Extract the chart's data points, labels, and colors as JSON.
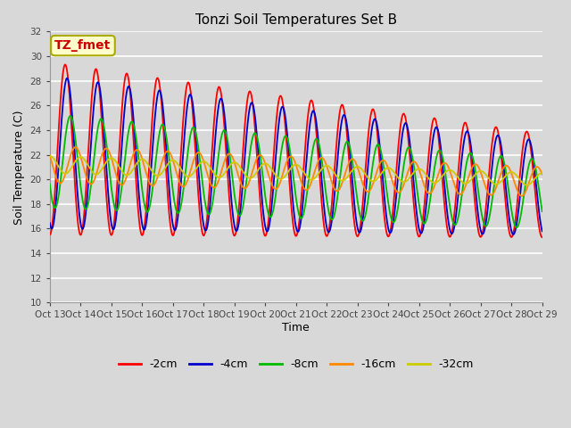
{
  "title": "Tonzi Soil Temperatures Set B",
  "xlabel": "Time",
  "ylabel": "Soil Temperature (C)",
  "ylim": [
    10,
    32
  ],
  "yticks": [
    10,
    12,
    14,
    16,
    18,
    20,
    22,
    24,
    26,
    28,
    30,
    32
  ],
  "fig_bg": "#d8d8d8",
  "plot_bg": "#d8d8d8",
  "grid_color": "#ffffff",
  "annotation_text": "TZ_fmet",
  "annotation_bg": "#ffffcc",
  "annotation_border": "#aaaa00",
  "annotation_text_color": "#cc0000",
  "legend_entries": [
    "-2cm",
    "-4cm",
    "-8cm",
    "-16cm",
    "-32cm"
  ],
  "legend_colors": [
    "#ff0000",
    "#0000cc",
    "#00bb00",
    "#ff8800",
    "#cccc00"
  ],
  "line_width": 1.3,
  "start_day": 13,
  "end_day": 29,
  "num_days": 16,
  "series_params": {
    "d2": {
      "mean_s": 22.5,
      "mean_e": 19.5,
      "amp_s": 7.0,
      "amp_e": 4.2,
      "phase": 6.0,
      "lag": 0.0
    },
    "d4": {
      "mean_s": 22.2,
      "mean_e": 19.3,
      "amp_s": 6.2,
      "amp_e": 3.8,
      "phase": 7.5,
      "lag": 0.0
    },
    "d8": {
      "mean_s": 21.5,
      "mean_e": 18.8,
      "amp_s": 3.8,
      "amp_e": 2.8,
      "phase": 10.0,
      "lag": 0.0
    },
    "d16": {
      "mean_s": 21.2,
      "mean_e": 19.8,
      "amp_s": 1.5,
      "amp_e": 1.2,
      "phase": 14.0,
      "lag": 0.0
    },
    "d32": {
      "mean_s": 21.2,
      "mean_e": 20.0,
      "amp_s": 0.7,
      "amp_e": 0.5,
      "phase": 18.0,
      "lag": 0.0
    }
  }
}
